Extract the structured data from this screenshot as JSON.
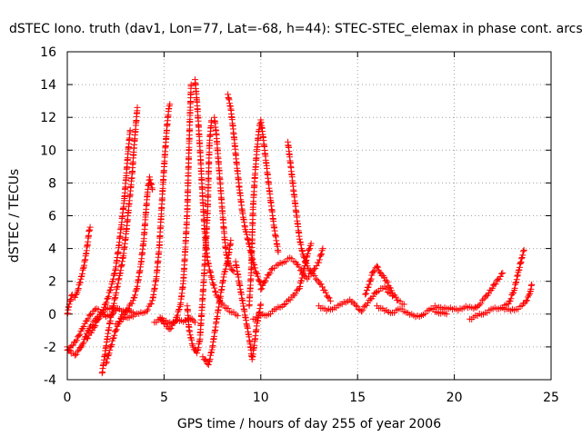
{
  "chart_data": {
    "type": "scatter",
    "title": "dSTEC Iono. truth (dav1, Lon=77, Lat=-68, h=44): STEC-STEC_elemax in phase cont. arcs",
    "xlabel": "GPS time / hours of day 255 of year 2006",
    "ylabel": "dSTEC  / TECUs",
    "xlim": [
      0,
      25
    ],
    "ylim": [
      -4,
      16
    ],
    "xticks": [
      0,
      5,
      10,
      15,
      20,
      25
    ],
    "yticks": [
      -4,
      -2,
      0,
      2,
      4,
      6,
      8,
      10,
      12,
      14,
      16
    ],
    "xtick_labels": [
      "0",
      "5",
      "10",
      "15",
      "20",
      "25"
    ],
    "ytick_labels": [
      "-4",
      "-2",
      "0",
      "2",
      "4",
      "6",
      "8",
      "10",
      "12",
      "14",
      "16"
    ],
    "grid": true,
    "marker": "+",
    "marker_color": "#ff0000",
    "series": [
      {
        "arcs": [
          [
            [
              0.0,
              -2.0
            ],
            [
              0.2,
              -2.4
            ],
            [
              0.4,
              -2.5
            ],
            [
              0.6,
              -2.2
            ],
            [
              0.8,
              -1.8
            ],
            [
              1.0,
              -1.2
            ],
            [
              1.2,
              -0.7
            ],
            [
              1.5,
              -0.3
            ],
            [
              1.8,
              0.1
            ],
            [
              2.1,
              0.3
            ],
            [
              2.4,
              0.4
            ]
          ],
          [
            [
              0.0,
              0.0
            ],
            [
              0.1,
              0.6
            ],
            [
              0.25,
              1.2
            ],
            [
              0.4,
              1.0
            ],
            [
              0.55,
              1.5
            ],
            [
              0.7,
              2.1
            ],
            [
              0.85,
              2.9
            ],
            [
              0.95,
              3.5
            ],
            [
              1.05,
              4.3
            ],
            [
              1.12,
              5.0
            ],
            [
              1.18,
              5.3
            ]
          ],
          [
            [
              0.0,
              -2.2
            ],
            [
              0.3,
              -1.9
            ],
            [
              0.6,
              -1.3
            ],
            [
              0.9,
              -0.6
            ],
            [
              1.2,
              0.0
            ],
            [
              1.5,
              0.3
            ],
            [
              1.8,
              0.1
            ],
            [
              2.0,
              -0.2
            ],
            [
              2.3,
              0.0
            ],
            [
              2.6,
              0.3
            ],
            [
              3.0,
              0.2
            ],
            [
              3.4,
              0.1
            ]
          ],
          [
            [
              1.0,
              -1.5
            ],
            [
              1.3,
              -1.0
            ],
            [
              1.6,
              -0.3
            ],
            [
              1.9,
              0.4
            ],
            [
              2.1,
              1.0
            ],
            [
              2.3,
              1.8
            ],
            [
              2.5,
              2.8
            ],
            [
              2.65,
              4.0
            ],
            [
              2.8,
              5.5
            ],
            [
              2.95,
              7.0
            ],
            [
              3.05,
              8.5
            ],
            [
              3.15,
              10.0
            ],
            [
              3.25,
              11.2
            ]
          ],
          [
            [
              1.8,
              -3.6
            ],
            [
              1.9,
              -2.8
            ],
            [
              2.0,
              -2.0
            ],
            [
              2.1,
              -1.2
            ],
            [
              2.2,
              -0.5
            ],
            [
              2.35,
              0.3
            ],
            [
              2.5,
              1.2
            ],
            [
              2.7,
              2.3
            ],
            [
              2.9,
              3.6
            ],
            [
              3.05,
              5.0
            ],
            [
              3.2,
              6.8
            ],
            [
              3.35,
              8.5
            ],
            [
              3.45,
              10.2
            ],
            [
              3.55,
              11.6
            ],
            [
              3.62,
              12.6
            ]
          ],
          [
            [
              2.0,
              -3.0
            ],
            [
              2.2,
              -2.2
            ],
            [
              2.5,
              -1.0
            ],
            [
              2.8,
              -0.2
            ],
            [
              3.1,
              0.3
            ],
            [
              3.4,
              0.8
            ],
            [
              3.6,
              1.6
            ],
            [
              3.8,
              3.0
            ],
            [
              3.95,
              4.5
            ],
            [
              4.05,
              6.0
            ],
            [
              4.15,
              7.5
            ],
            [
              4.25,
              8.3
            ],
            [
              4.4,
              7.6
            ]
          ],
          [
            [
              2.5,
              -0.6
            ],
            [
              2.9,
              -0.3
            ],
            [
              3.3,
              -0.1
            ],
            [
              3.7,
              0.0
            ],
            [
              4.1,
              0.2
            ],
            [
              4.4,
              0.8
            ],
            [
              4.6,
              2.2
            ],
            [
              4.75,
              4.0
            ],
            [
              4.85,
              6.0
            ],
            [
              4.95,
              8.0
            ],
            [
              5.05,
              9.8
            ],
            [
              5.15,
              11.4
            ],
            [
              5.25,
              12.6
            ],
            [
              5.3,
              12.8
            ]
          ],
          [
            [
              4.5,
              -0.5
            ],
            [
              4.8,
              -0.3
            ],
            [
              5.1,
              -0.4
            ],
            [
              5.4,
              -0.6
            ],
            [
              5.7,
              -0.3
            ],
            [
              6.0,
              -0.5
            ],
            [
              6.3,
              -0.2
            ],
            [
              6.6,
              -0.5
            ]
          ],
          [
            [
              4.8,
              -0.2
            ],
            [
              5.0,
              -0.6
            ],
            [
              5.3,
              -0.9
            ],
            [
              5.6,
              -0.4
            ],
            [
              5.85,
              0.6
            ],
            [
              6.0,
              2.0
            ],
            [
              6.1,
              4.0
            ],
            [
              6.2,
              6.2
            ],
            [
              6.25,
              8.5
            ],
            [
              6.3,
              10.5
            ],
            [
              6.35,
              12.5
            ],
            [
              6.4,
              14.0
            ]
          ],
          [
            [
              6.2,
              0.5
            ],
            [
              6.3,
              -1.0
            ],
            [
              6.5,
              -2.0
            ],
            [
              6.7,
              -2.4
            ],
            [
              6.85,
              -1.6
            ],
            [
              6.95,
              0.2
            ],
            [
              7.05,
              2.0
            ],
            [
              7.15,
              4.0
            ],
            [
              7.25,
              6.2
            ],
            [
              7.3,
              8.5
            ],
            [
              7.35,
              10.5
            ],
            [
              7.45,
              11.8
            ]
          ],
          [
            [
              6.6,
              14.3
            ],
            [
              6.7,
              13.0
            ],
            [
              6.8,
              11.2
            ],
            [
              6.9,
              9.2
            ],
            [
              7.0,
              7.0
            ],
            [
              7.1,
              5.0
            ],
            [
              7.25,
              3.3
            ],
            [
              7.45,
              2.2
            ],
            [
              7.7,
              1.2
            ],
            [
              8.0,
              0.6
            ],
            [
              8.4,
              0.2
            ],
            [
              8.8,
              -0.1
            ]
          ],
          [
            [
              7.0,
              -2.6
            ],
            [
              7.3,
              -3.1
            ],
            [
              7.5,
              -2.0
            ],
            [
              7.7,
              -0.5
            ],
            [
              7.9,
              1.0
            ],
            [
              8.1,
              2.4
            ],
            [
              8.3,
              3.3
            ],
            [
              8.45,
              4.5
            ]
          ],
          [
            [
              7.6,
              12.0
            ],
            [
              7.7,
              11.0
            ],
            [
              7.8,
              9.5
            ],
            [
              7.9,
              8.0
            ],
            [
              8.0,
              6.5
            ],
            [
              8.1,
              5.0
            ],
            [
              8.2,
              3.8
            ],
            [
              8.35,
              3.0
            ],
            [
              8.6,
              2.6
            ]
          ],
          [
            [
              8.3,
              13.4
            ],
            [
              8.45,
              12.5
            ],
            [
              8.6,
              11.0
            ],
            [
              8.75,
              9.2
            ],
            [
              8.9,
              7.6
            ],
            [
              9.05,
              6.2
            ],
            [
              9.2,
              5.2
            ],
            [
              9.4,
              4.2
            ],
            [
              9.6,
              3.2
            ],
            [
              9.8,
              2.4
            ],
            [
              10.0,
              1.8
            ]
          ],
          [
            [
              8.7,
              3.2
            ],
            [
              8.9,
              1.8
            ],
            [
              9.1,
              0.5
            ],
            [
              9.3,
              -0.8
            ],
            [
              9.45,
              -1.8
            ],
            [
              9.55,
              -2.8
            ],
            [
              9.65,
              -2.0
            ],
            [
              9.8,
              -0.6
            ],
            [
              10.0,
              0.6
            ]
          ],
          [
            [
              9.4,
              0.5
            ],
            [
              9.5,
              2.5
            ],
            [
              9.55,
              4.5
            ],
            [
              9.6,
              6.5
            ],
            [
              9.7,
              8.5
            ],
            [
              9.8,
              10.0
            ],
            [
              9.9,
              11.2
            ],
            [
              10.0,
              11.8
            ],
            [
              10.1,
              11.0
            ],
            [
              10.3,
              9.0
            ],
            [
              10.5,
              7.0
            ],
            [
              10.7,
              5.2
            ],
            [
              10.9,
              3.8
            ]
          ],
          [
            [
              10.0,
              1.5
            ],
            [
              10.3,
              2.2
            ],
            [
              10.6,
              2.8
            ],
            [
              10.9,
              3.0
            ],
            [
              11.2,
              3.2
            ],
            [
              11.5,
              3.4
            ],
            [
              11.8,
              3.2
            ],
            [
              12.1,
              2.6
            ],
            [
              12.4,
              2.2
            ],
            [
              12.7,
              2.6
            ],
            [
              13.0,
              3.2
            ],
            [
              13.2,
              4.0
            ]
          ],
          [
            [
              9.6,
              -0.3
            ],
            [
              10.0,
              -0.1
            ],
            [
              10.4,
              0.0
            ],
            [
              10.8,
              0.3
            ],
            [
              11.2,
              0.6
            ],
            [
              11.6,
              1.0
            ],
            [
              12.0,
              1.6
            ],
            [
              12.2,
              2.6
            ],
            [
              12.4,
              3.6
            ],
            [
              12.6,
              4.3
            ]
          ],
          [
            [
              11.4,
              10.5
            ],
            [
              11.55,
              9.0
            ],
            [
              11.7,
              7.5
            ],
            [
              11.85,
              6.0
            ],
            [
              12.0,
              4.6
            ],
            [
              12.2,
              3.5
            ],
            [
              12.45,
              2.8
            ],
            [
              12.7,
              2.4
            ],
            [
              13.0,
              2.0
            ],
            [
              13.3,
              1.4
            ],
            [
              13.6,
              0.8
            ]
          ],
          [
            [
              13.0,
              0.5
            ],
            [
              13.4,
              0.2
            ],
            [
              13.8,
              0.4
            ],
            [
              14.2,
              0.6
            ],
            [
              14.6,
              0.9
            ],
            [
              14.9,
              0.5
            ],
            [
              15.2,
              0.2
            ],
            [
              15.6,
              0.8
            ],
            [
              16.0,
              1.4
            ],
            [
              16.4,
              1.6
            ],
            [
              16.8,
              1.1
            ]
          ],
          [
            [
              15.4,
              1.2
            ],
            [
              15.6,
              1.8
            ],
            [
              15.8,
              2.6
            ],
            [
              16.0,
              2.9
            ],
            [
              16.2,
              2.5
            ],
            [
              16.5,
              2.0
            ],
            [
              16.8,
              1.3
            ],
            [
              17.1,
              0.8
            ],
            [
              17.4,
              0.6
            ]
          ],
          [
            [
              16.0,
              0.5
            ],
            [
              16.4,
              0.2
            ],
            [
              16.8,
              0.1
            ],
            [
              17.2,
              0.3
            ],
            [
              17.6,
              0.1
            ],
            [
              18.0,
              -0.2
            ],
            [
              18.4,
              0.0
            ],
            [
              18.8,
              0.3
            ],
            [
              19.2,
              0.1
            ],
            [
              19.6,
              0.0
            ]
          ],
          [
            [
              19.0,
              0.5
            ],
            [
              19.4,
              0.3
            ],
            [
              19.8,
              0.4
            ],
            [
              20.2,
              0.2
            ],
            [
              20.6,
              0.5
            ],
            [
              21.0,
              0.3
            ],
            [
              21.3,
              0.6
            ],
            [
              21.6,
              1.0
            ],
            [
              21.9,
              1.5
            ],
            [
              22.2,
              2.0
            ],
            [
              22.5,
              2.5
            ]
          ],
          [
            [
              20.8,
              -0.3
            ],
            [
              21.2,
              -0.1
            ],
            [
              21.6,
              0.1
            ],
            [
              22.0,
              0.3
            ],
            [
              22.4,
              0.4
            ],
            [
              22.8,
              0.6
            ],
            [
              23.1,
              1.5
            ],
            [
              23.3,
              2.5
            ],
            [
              23.5,
              3.5
            ],
            [
              23.6,
              3.9
            ]
          ],
          [
            [
              22.5,
              0.4
            ],
            [
              22.9,
              0.2
            ],
            [
              23.2,
              0.3
            ],
            [
              23.5,
              0.5
            ],
            [
              23.7,
              0.8
            ],
            [
              23.9,
              1.2
            ],
            [
              24.0,
              1.8
            ]
          ]
        ]
      }
    ]
  }
}
